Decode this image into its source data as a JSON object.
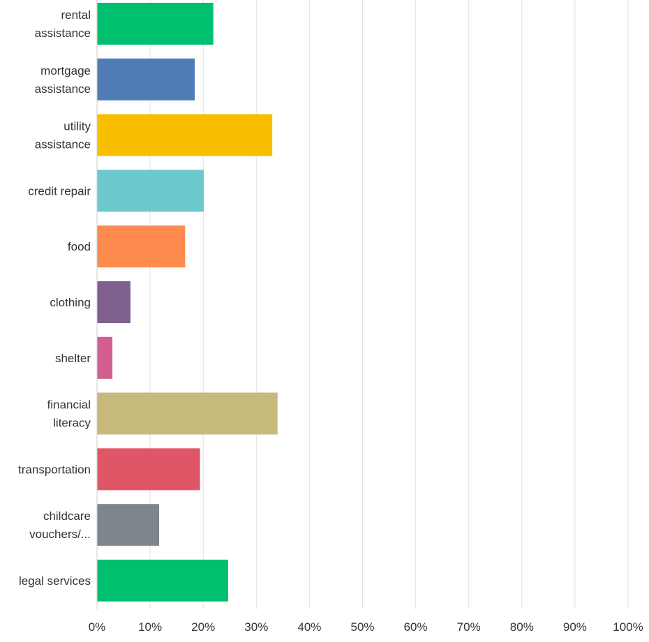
{
  "chart_data": {
    "type": "bar",
    "orientation": "horizontal",
    "categories": [
      [
        "rental",
        "assistance"
      ],
      [
        "mortgage",
        "assistance"
      ],
      [
        "utility",
        "assistance"
      ],
      [
        "credit repair"
      ],
      [
        "food"
      ],
      [
        "clothing"
      ],
      [
        "shelter"
      ],
      [
        "financial",
        "literacy"
      ],
      [
        "transportation"
      ],
      [
        "childcare",
        "vouchers/..."
      ],
      [
        "legal services"
      ]
    ],
    "values": [
      21.9,
      18.4,
      33.0,
      20.1,
      16.6,
      6.3,
      2.9,
      34.0,
      19.4,
      11.7,
      24.7
    ],
    "colors": [
      "#00bf6f",
      "#507cb6",
      "#f9be00",
      "#6bc8cd",
      "#ff8b4f",
      "#7f5f90",
      "#d25f90",
      "#c8b97c",
      "#e05666",
      "#7d868c",
      "#00bf6f"
    ],
    "xlim": [
      0,
      100
    ],
    "x_ticks": [
      "0%",
      "10%",
      "20%",
      "30%",
      "40%",
      "50%",
      "60%",
      "70%",
      "80%",
      "90%",
      "100%"
    ],
    "grid": true,
    "title": "",
    "xlabel": "",
    "ylabel": ""
  }
}
